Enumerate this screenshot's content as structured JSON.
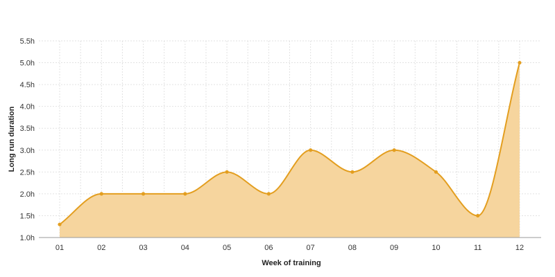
{
  "chart_data": {
    "type": "area",
    "xlabel": "Week of training",
    "ylabel": "Long run duration",
    "categories": [
      "01",
      "02",
      "03",
      "04",
      "05",
      "06",
      "07",
      "08",
      "09",
      "10",
      "11",
      "12"
    ],
    "series": [
      {
        "values": [
          1.3,
          2.0,
          2.0,
          2.0,
          2.5,
          2.0,
          3.0,
          2.5,
          3.0,
          2.5,
          1.5,
          5.0
        ]
      }
    ],
    "ylim": [
      1.0,
      5.5
    ],
    "yticks": [
      1.0,
      1.5,
      2.0,
      2.5,
      3.0,
      3.5,
      4.0,
      4.5,
      5.0,
      5.5
    ],
    "ytick_labels": [
      "1.0h",
      "1.5h",
      "2.0h",
      "2.5h",
      "3.0h",
      "3.5h",
      "4.0h",
      "4.5h",
      "5.0h",
      "5.5h"
    ],
    "grid": true,
    "smooth": true,
    "line_color": "#e39e1f",
    "fill_color": "#f6d59e",
    "point_color": "#e39e1f"
  }
}
